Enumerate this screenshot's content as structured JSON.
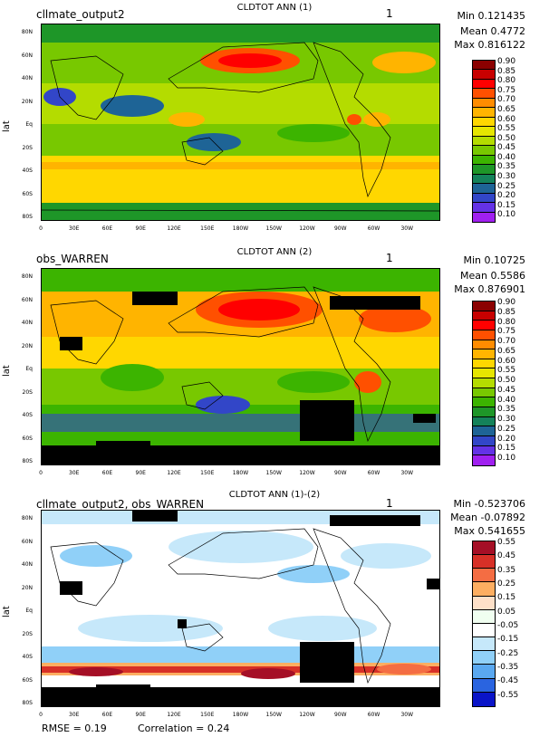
{
  "panels": [
    {
      "case": "cllmate_output2",
      "title": "CLDTOT ANN (1)",
      "index": "1",
      "min": "Min 0.121435",
      "mean": "Mean 0.4772",
      "max": "Max 0.816122",
      "colorbar_labels": [
        "0.90",
        "0.85",
        "0.80",
        "0.75",
        "0.70",
        "0.65",
        "0.60",
        "0.55",
        "0.50",
        "0.45",
        "0.40",
        "0.35",
        "0.30",
        "0.25",
        "0.20",
        "0.15",
        "0.10"
      ],
      "colorbar_colors": [
        "#8b0000",
        "#c80000",
        "#ff0000",
        "#ff5000",
        "#ff8c00",
        "#ffb400",
        "#ffd700",
        "#e6e600",
        "#b4dc00",
        "#78c800",
        "#3cb400",
        "#1e9628",
        "#14825a",
        "#1e6496",
        "#3246c8",
        "#6432e6",
        "#a020f0"
      ]
    },
    {
      "case": "obs_WARREN",
      "title": "CLDTOT ANN (2)",
      "index": "1",
      "min": "Min 0.10725",
      "mean": "Mean 0.5586",
      "max": "Max 0.876901",
      "colorbar_labels": [
        "0.90",
        "0.85",
        "0.80",
        "0.75",
        "0.70",
        "0.65",
        "0.60",
        "0.55",
        "0.50",
        "0.45",
        "0.40",
        "0.35",
        "0.30",
        "0.25",
        "0.20",
        "0.15",
        "0.10"
      ],
      "colorbar_colors": [
        "#8b0000",
        "#c80000",
        "#ff0000",
        "#ff5000",
        "#ff8c00",
        "#ffb400",
        "#ffd700",
        "#e6e600",
        "#b4dc00",
        "#78c800",
        "#3cb400",
        "#1e9628",
        "#14825a",
        "#1e6496",
        "#3246c8",
        "#6432e6",
        "#a020f0"
      ]
    },
    {
      "case": "cllmate_output2, obs_WARREN",
      "title": "CLDTOT ANN (1)-(2)",
      "index": "1",
      "min": "Min -0.523706",
      "mean": "Mean -0.07892",
      "max": "Max 0.541655",
      "colorbar_labels": [
        "0.55",
        "0.45",
        "0.35",
        "0.25",
        "0.15",
        "0.05",
        "-0.05",
        "-0.15",
        "-0.25",
        "-0.35",
        "-0.45",
        "-0.55"
      ],
      "colorbar_colors": [
        "#a50f26",
        "#d73027",
        "#f46d43",
        "#fdae61",
        "#fee0c8",
        "#f0fff0",
        "#ffffff",
        "#c6e8fa",
        "#90d0f8",
        "#5aa8f0",
        "#2a64e0",
        "#0a14c8"
      ]
    }
  ],
  "axes": {
    "ylabel": "lat",
    "yticks": [
      "80N",
      "60N",
      "40N",
      "20N",
      "Eq",
      "20S",
      "40S",
      "60S",
      "80S"
    ],
    "xticks": [
      "0",
      "30E",
      "60E",
      "90E",
      "120E",
      "150E",
      "180W",
      "150W",
      "120W",
      "90W",
      "60W",
      "30W"
    ]
  },
  "footer": {
    "rmse": "RMSE = 0.19",
    "correlation": "Correlation = 0.24"
  }
}
